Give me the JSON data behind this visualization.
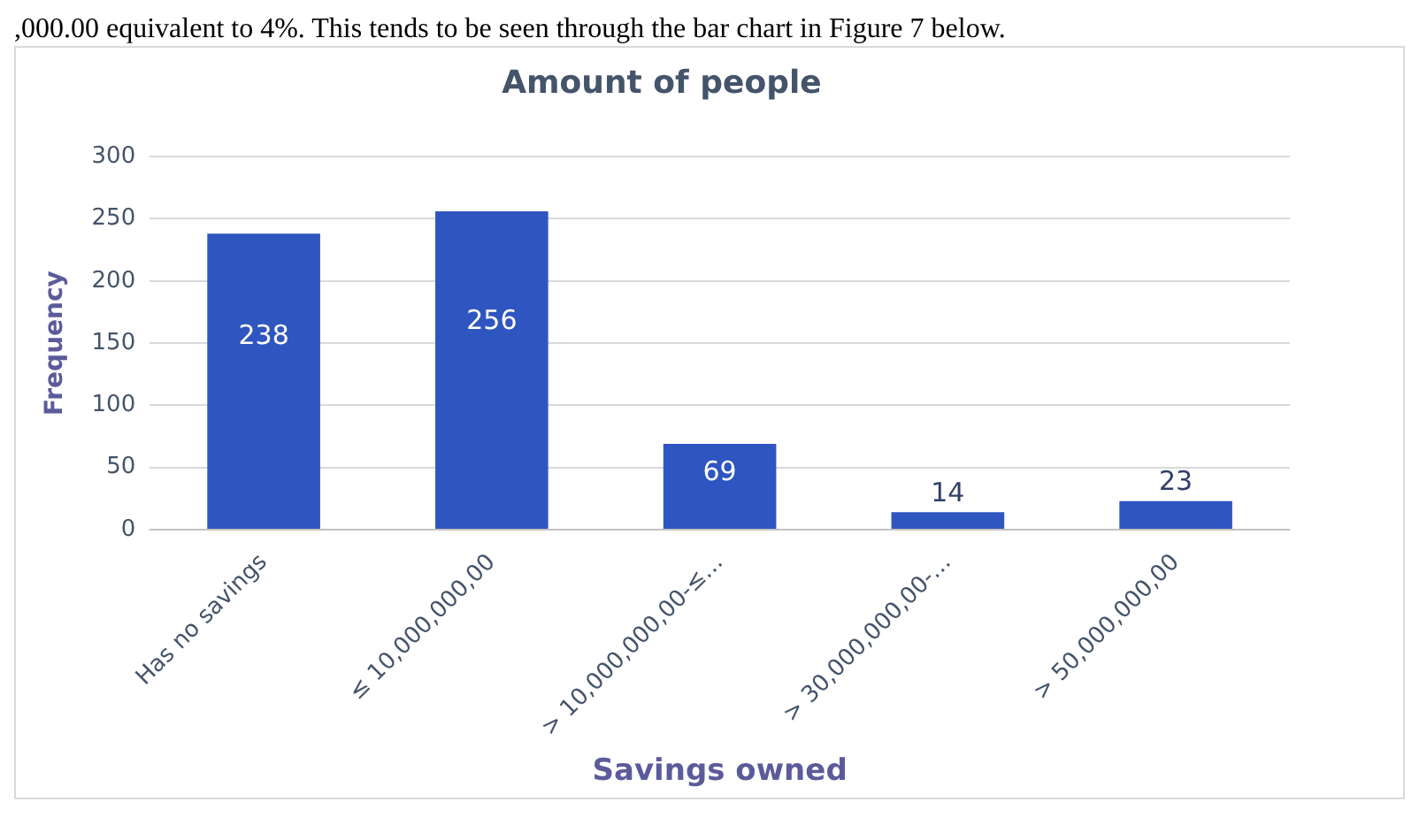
{
  "chart_data": {
    "type": "bar",
    "title": "Amount of people",
    "xlabel": "Savings owned",
    "ylabel": "Frequency",
    "annotations": [
      ",000.00 equivalent to 4%. This tends to be seen through the bar chart in Figure 7 below."
    ],
    "categories": [
      "Has no savings",
      "≤ 10,000,000,00",
      "> 10,000,000,00-≤…",
      "> 30,000,000,00-…",
      "> 50,000,000,00"
    ],
    "values": [
      238,
      256,
      69,
      14,
      23
    ],
    "color": "#2f55c0",
    "ylim": [
      0,
      300
    ],
    "yticks": [
      0,
      50,
      100,
      150,
      200,
      250,
      300
    ],
    "grid": "y",
    "data_labels": true,
    "legend": false
  }
}
